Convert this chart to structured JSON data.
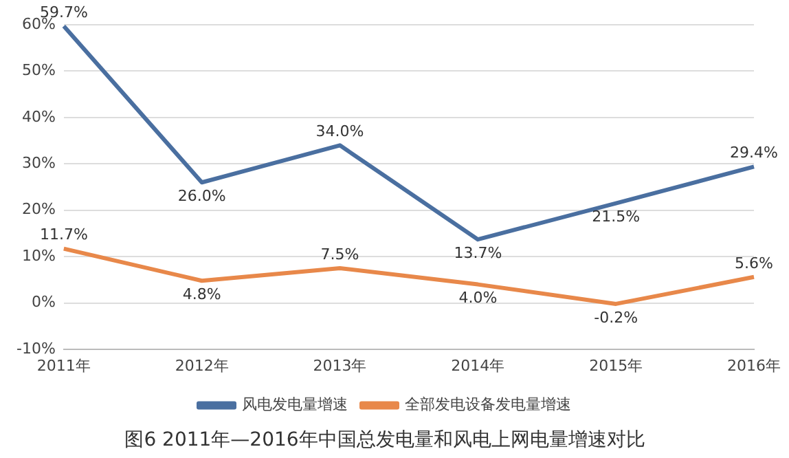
{
  "chart_data": {
    "type": "line",
    "title": "图6 2011年—2016年中国总发电量和风电上网电量增速对比",
    "categories": [
      "2011年",
      "2012年",
      "2013年",
      "2014年",
      "2015年",
      "2016年"
    ],
    "series": [
      {
        "name": "风电发电量增速",
        "color": "#4a6fa0",
        "values": [
          59.7,
          26.0,
          34.0,
          13.7,
          21.5,
          29.4
        ],
        "value_labels": [
          "59.7%",
          "26.0%",
          "34.0%",
          "13.7%",
          "21.5%",
          "29.4%"
        ]
      },
      {
        "name": "全部发电设备发电量增速",
        "color": "#e8884a",
        "values": [
          11.7,
          4.8,
          7.5,
          4.0,
          -0.2,
          5.6
        ],
        "value_labels": [
          "11.7%",
          "4.8%",
          "7.5%",
          "4.0%",
          "-0.2%",
          "5.6%"
        ]
      }
    ],
    "ylim": [
      -10,
      60
    ],
    "yticks": [
      {
        "value": -10,
        "label": "-10%"
      },
      {
        "value": 0,
        "label": "0%"
      },
      {
        "value": 10,
        "label": "10%"
      },
      {
        "value": 20,
        "label": "20%"
      },
      {
        "value": 30,
        "label": "30%"
      },
      {
        "value": 40,
        "label": "40%"
      },
      {
        "value": 50,
        "label": "50%"
      },
      {
        "value": 60,
        "label": "60%"
      }
    ],
    "grid": "y",
    "legend": "bottom",
    "marker": "none",
    "line_style": "solid"
  }
}
